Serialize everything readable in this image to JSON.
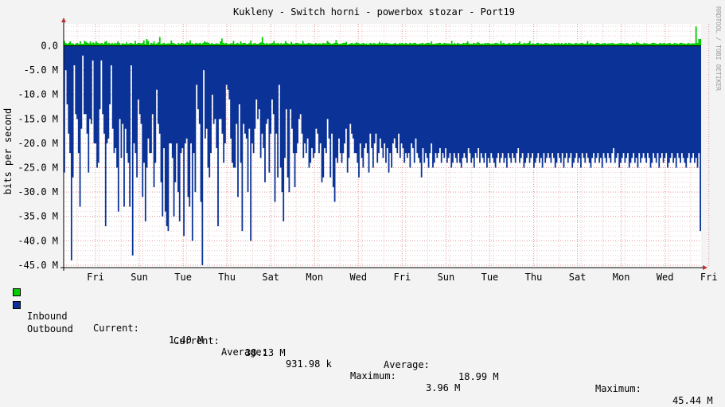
{
  "chart_data": {
    "type": "area",
    "title": "Kukleny - Switch horni - powerbox stozar - Port19",
    "ylabel": "bits per second",
    "watermark": "RRDTOOL / TOBI OETIKER",
    "y_ticks": [
      {
        "v": 0,
        "label": "0.0"
      },
      {
        "v": -5,
        "label": "-5.0 M"
      },
      {
        "v": -10,
        "label": "-10.0 M"
      },
      {
        "v": -15,
        "label": "-15.0 M"
      },
      {
        "v": -20,
        "label": "-20.0 M"
      },
      {
        "v": -25,
        "label": "-25.0 M"
      },
      {
        "v": -30,
        "label": "-30.0 M"
      },
      {
        "v": -35,
        "label": "-35.0 M"
      },
      {
        "v": -40,
        "label": "-40.0 M"
      },
      {
        "v": -45,
        "label": "-45.0 M"
      }
    ],
    "ylim": [
      -45.5,
      4.5
    ],
    "x_labels": [
      "Fri",
      "Sun",
      "Tue",
      "Thu",
      "Sat",
      "Mon",
      "Wed",
      "Fri",
      "Sun",
      "Tue",
      "Thu",
      "Sat",
      "Mon",
      "Wed",
      "Fri"
    ],
    "series": [
      {
        "name": "Inbound",
        "color": "#00cc00",
        "values": [
          1.0,
          0.6,
          0.4,
          0.6,
          0.9,
          0.5,
          0.5,
          0.3,
          0.5,
          0.6,
          0.4,
          0.9,
          0.4,
          0.4,
          1.0,
          0.8,
          0.6,
          0.5,
          0.9,
          0.5,
          0.7,
          0.5,
          0.9,
          0.6,
          0.5,
          0.5,
          0.6,
          0.4,
          0.8,
          1.0,
          0.5,
          0.6,
          0.4,
          0.6,
          0.4,
          0.6,
          0.5,
          0.9,
          0.6,
          0.3,
          0.5,
          0.5,
          0.4,
          0.7,
          0.4,
          0.5,
          0.6,
          0.5,
          0.4,
          1.0,
          0.4,
          0.6,
          0.6,
          0.5,
          0.6,
          1.1,
          0.4,
          1.4,
          1.0,
          0.3,
          0.6,
          0.5,
          0.9,
          0.4,
          0.5,
          0.7,
          1.8,
          0.4,
          0.5,
          0.6,
          0.4,
          0.5,
          0.5,
          0.5,
          1.1,
          0.6,
          0.5,
          0.4,
          0.3,
          0.6,
          0.4,
          0.6,
          0.5,
          0.4,
          0.6,
          0.8,
          0.6,
          1.1,
          0.5,
          0.5,
          0.4,
          0.6,
          0.5,
          0.5,
          0.6,
          0.4,
          0.6,
          0.9,
          0.7,
          0.7,
          0.6,
          0.4,
          0.6,
          0.4,
          0.4,
          0.5,
          0.5,
          0.4,
          0.9,
          1.5,
          0.6,
          0.5,
          0.6,
          0.4,
          0.4,
          0.5,
          0.5,
          1.0,
          0.4,
          0.5,
          0.6,
          0.4,
          0.9,
          0.5,
          0.6,
          0.6,
          0.4,
          0.4,
          0.6,
          1.1,
          0.4,
          0.5,
          0.6,
          0.4,
          0.4,
          0.6,
          0.7,
          1.8,
          0.6,
          0.4,
          0.6,
          0.4,
          0.5,
          0.5,
          0.6,
          1.0,
          0.5,
          0.5,
          0.6,
          0.4,
          0.6,
          0.4,
          0.5,
          1.0,
          0.6,
          0.5,
          0.4,
          0.8,
          0.5,
          0.4,
          0.6,
          0.6,
          0.5,
          0.5,
          0.4,
          1.0,
          0.5,
          0.4,
          0.5,
          0.6,
          0.5,
          0.5,
          0.4,
          0.4,
          0.6,
          0.4,
          0.5,
          0.5,
          0.4,
          0.6,
          0.5,
          0.5,
          1.0,
          0.7,
          0.5,
          0.4,
          0.5,
          0.6,
          1.2,
          0.6,
          0.4,
          0.4,
          0.5,
          0.6,
          0.6,
          0.8,
          0.3,
          0.4,
          0.5,
          0.6,
          0.4,
          0.5,
          0.7,
          0.6,
          0.5,
          0.4,
          0.5,
          0.6,
          0.4,
          0.5,
          0.3,
          0.5,
          0.6,
          0.4,
          0.6,
          0.5,
          0.4,
          0.5,
          0.8,
          0.5,
          0.6,
          0.4,
          0.6,
          0.6,
          0.5,
          0.5,
          0.4,
          0.4,
          0.5,
          0.6,
          0.4,
          0.4,
          0.6,
          0.5,
          0.6,
          0.4,
          0.6,
          0.5,
          0.4,
          0.6,
          0.5,
          0.5,
          0.6,
          0.6,
          0.4,
          0.4,
          0.5,
          0.5,
          0.6,
          0.4,
          0.5,
          0.6,
          0.6,
          0.5,
          0.9,
          0.4,
          0.4,
          0.5,
          0.5,
          0.6,
          0.6,
          0.4,
          0.5,
          0.6,
          0.5,
          0.5,
          0.5,
          0.4,
          1.0,
          0.4,
          0.6,
          0.4,
          0.6,
          0.5,
          0.4,
          0.4,
          0.6,
          0.5,
          0.6,
          0.9,
          0.5,
          0.4,
          0.4,
          0.6,
          0.5,
          0.5,
          0.8,
          0.6,
          0.4,
          0.5,
          0.4,
          0.6,
          0.5,
          0.6,
          0.5,
          0.4,
          0.5,
          0.4,
          0.6,
          0.6,
          0.5,
          0.4,
          1.0,
          0.5,
          0.6,
          0.4,
          0.4,
          0.5,
          0.6,
          0.4,
          0.5,
          0.6,
          0.5,
          0.5,
          0.6,
          0.9,
          0.4,
          0.4,
          0.6,
          0.5,
          0.5,
          0.6,
          1.0,
          0.4,
          0.5,
          0.4,
          0.4,
          0.6,
          0.6,
          0.4,
          0.5,
          0.4,
          0.5,
          0.6,
          0.5,
          0.5,
          0.4,
          0.5,
          0.4,
          0.6,
          0.5,
          0.5,
          0.6,
          0.4,
          0.6,
          0.4,
          0.5,
          0.6,
          0.4,
          0.6,
          0.5,
          0.5,
          0.4,
          0.5,
          0.6,
          0.4,
          0.5,
          0.5,
          0.6,
          0.5,
          0.4,
          0.5,
          1.0,
          0.4,
          0.6,
          0.5,
          0.4,
          0.4,
          0.6,
          0.6,
          0.5,
          0.4,
          0.5,
          0.5,
          0.6,
          0.4,
          0.5,
          0.5,
          0.5,
          0.6,
          0.5,
          0.4,
          0.4,
          0.5,
          0.5,
          0.6,
          0.5,
          0.5,
          0.4,
          0.6,
          0.5,
          0.4,
          0.4,
          0.6,
          0.5,
          0.5,
          0.8,
          0.6,
          0.5,
          0.4,
          0.4,
          0.6,
          0.5,
          0.5,
          0.4,
          0.4,
          0.5,
          0.6,
          0.6,
          0.5,
          0.4,
          0.4,
          0.6,
          0.5,
          0.5,
          0.6,
          0.4,
          0.5,
          0.5,
          0.6,
          0.4,
          0.4,
          0.6,
          0.5,
          0.5,
          0.4,
          0.6,
          0.6,
          0.5,
          0.5,
          0.4,
          0.5,
          0.6,
          0.4,
          0.5,
          0.5,
          0.5,
          3.96,
          0.6,
          1.4,
          1.4
        ]
      },
      {
        "name": "Outbound",
        "color": "#0b3397",
        "values": [
          -26,
          -5,
          -12,
          -18,
          -22,
          -44,
          -27,
          -4,
          -14,
          -15,
          -22,
          -33,
          -17,
          -2,
          -14,
          -14,
          -18,
          -26,
          -15,
          -16,
          -3,
          -20,
          -20,
          -25,
          -24,
          -13,
          -3,
          -14,
          -18,
          -37,
          -20,
          -19,
          -12,
          -4,
          -17,
          -22,
          -21,
          -25,
          -34,
          -15,
          -23,
          -16,
          -33,
          -17,
          -22,
          -24,
          -33,
          -4,
          -43,
          -20,
          -22,
          -27,
          -11,
          -14,
          -16,
          -31,
          -24,
          -36,
          -25,
          -19,
          -22,
          -22,
          -14,
          -29,
          -24,
          -9,
          -16,
          -18,
          -28,
          -35,
          -21,
          -34,
          -37,
          -38,
          -20,
          -20,
          -23,
          -35,
          -28,
          -20,
          -30,
          -36,
          -22,
          -21,
          -39,
          -20,
          -19,
          -31,
          -33,
          -20,
          -40,
          -22,
          -30,
          -8,
          -13,
          -16,
          -32,
          -45,
          -5,
          -19,
          -17,
          -25,
          -27,
          -22,
          -10,
          -16,
          -15,
          -21,
          -37,
          -15,
          -15,
          -18,
          -24,
          -20,
          -8,
          -9,
          -11,
          -19,
          -24,
          -25,
          -25,
          -16,
          -31,
          -12,
          -24,
          -38,
          -16,
          -18,
          -19,
          -30,
          -17,
          -40,
          -20,
          -22,
          -17,
          -11,
          -15,
          -13,
          -23,
          -18,
          -21,
          -28,
          -16,
          -15,
          -26,
          -18,
          -11,
          -14,
          -32,
          -18,
          -27,
          -8,
          -25,
          -30,
          -36,
          -23,
          -13,
          -27,
          -30,
          -13,
          -17,
          -22,
          -29,
          -22,
          -20,
          -15,
          -14,
          -18,
          -23,
          -20,
          -22,
          -19,
          -25,
          -24,
          -21,
          -23,
          -22,
          -17,
          -18,
          -22,
          -20,
          -28,
          -27,
          -21,
          -22,
          -15,
          -19,
          -27,
          -18,
          -29,
          -32,
          -23,
          -24,
          -19,
          -22,
          -24,
          -22,
          -20,
          -17,
          -26,
          -23,
          -16,
          -18,
          -19,
          -22,
          -22,
          -24,
          -27,
          -20,
          -23,
          -25,
          -21,
          -20,
          -22,
          -26,
          -18,
          -21,
          -25,
          -20,
          -18,
          -24,
          -22,
          -19,
          -21,
          -23,
          -20,
          -24,
          -21,
          -26,
          -22,
          -25,
          -20,
          -19,
          -21,
          -22,
          -18,
          -23,
          -20,
          -21,
          -24,
          -22,
          -23,
          -22,
          -25,
          -20,
          -21,
          -24,
          -19,
          -22,
          -23,
          -24,
          -27,
          -21,
          -24,
          -22,
          -23,
          -25,
          -22,
          -20,
          -25,
          -24,
          -22,
          -23,
          -22,
          -21,
          -24,
          -22,
          -23,
          -21,
          -24,
          -23,
          -22,
          -25,
          -24,
          -22,
          -23,
          -24,
          -22,
          -24,
          -25,
          -23,
          -22,
          -23,
          -24,
          -21,
          -22,
          -24,
          -23,
          -25,
          -22,
          -23,
          -21,
          -24,
          -22,
          -23,
          -24,
          -22,
          -25,
          -23,
          -24,
          -22,
          -23,
          -24,
          -25,
          -23,
          -22,
          -24,
          -23,
          -22,
          -24,
          -23,
          -25,
          -22,
          -23,
          -24,
          -22,
          -23,
          -24,
          -22,
          -21,
          -24,
          -23,
          -22,
          -25,
          -24,
          -23,
          -22,
          -24,
          -23,
          -22,
          -25,
          -24,
          -23,
          -22,
          -24,
          -23,
          -25,
          -22,
          -24,
          -23,
          -22,
          -23,
          -24,
          -22,
          -23,
          -25,
          -24,
          -22,
          -23,
          -24,
          -22,
          -25,
          -23,
          -22,
          -24,
          -23,
          -22,
          -25,
          -24,
          -23,
          -22,
          -24,
          -23,
          -25,
          -22,
          -23,
          -24,
          -22,
          -23,
          -24,
          -25,
          -23,
          -22,
          -24,
          -23,
          -22,
          -24,
          -23,
          -25,
          -22,
          -23,
          -24,
          -22,
          -23,
          -24,
          -22,
          -21,
          -24,
          -23,
          -22,
          -25,
          -24,
          -23,
          -22,
          -24,
          -23,
          -22,
          -25,
          -24,
          -23,
          -22,
          -24,
          -23,
          -25,
          -22,
          -24,
          -23,
          -22,
          -23,
          -24,
          -22,
          -23,
          -25,
          -24,
          -22,
          -23,
          -24,
          -22,
          -25,
          -23,
          -22,
          -24,
          -23,
          -22,
          -25,
          -24,
          -23,
          -22,
          -24,
          -23,
          -25,
          -22,
          -23,
          -24,
          -22,
          -23,
          -24,
          -25,
          -23,
          -22,
          -24,
          -23,
          -22,
          -24,
          -23,
          -25,
          -22,
          -38
        ]
      }
    ]
  },
  "legend": {
    "inbound": {
      "name": "Inbound",
      "current_label": "Current:",
      "current": "1.40 M",
      "average_label": "Average:",
      "average": "931.98 k",
      "maximum_label": "Maximum:",
      "maximum": "3.96 M",
      "color": "#00cc00"
    },
    "outbound": {
      "name": "Outbound",
      "current_label": "Current:",
      "current": "38.13 M",
      "average_label": "Average:",
      "average": "18.99 M",
      "maximum_label": "Maximum:",
      "maximum": "45.44 M",
      "color": "#0b3397"
    }
  }
}
